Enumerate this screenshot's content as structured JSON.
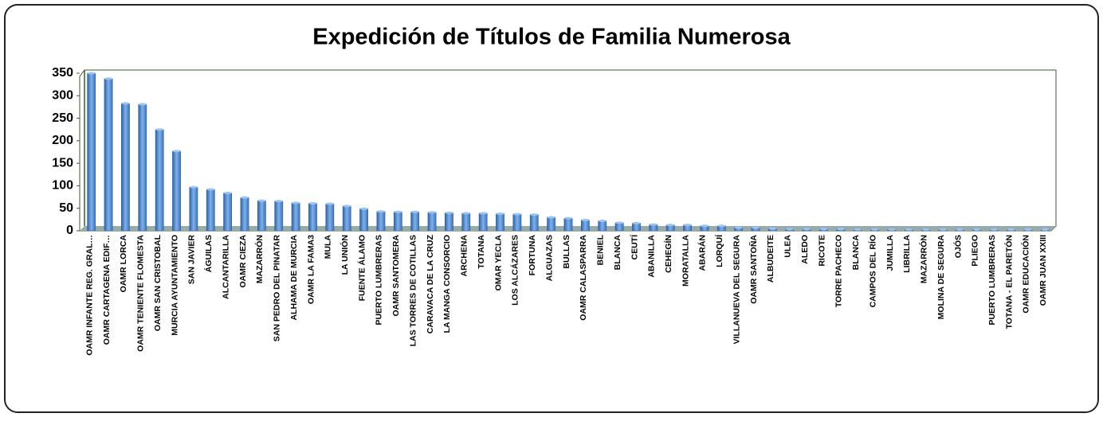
{
  "chart_data": {
    "type": "bar",
    "title": "Expedición de Títulos de Familia Numerosa",
    "categories": [
      "OAMR INFANTE REG. GRAL…",
      "OAMR CARTAGENA EDIF…",
      "OAMR LORCA",
      "OAMR TENIENTE FLOMESTA",
      "OAMR SAN CRISTOBAL",
      "MURCIA AYUNTAMIENTO",
      "SAN JAVIER",
      "ÁGUILAS",
      "ALCANTARILLA",
      "OAMR CIEZA",
      "MAZARRÓN",
      "SAN PEDRO DEL PINATAR",
      "ALHAMA DE MURCIA",
      "OAMR LA FAMA3",
      "MULA",
      "LA UNIÓN",
      "FUENTE ÁLAMO",
      "PUERTO LUMBRERAS",
      "OAMR SANTOMERA",
      "LAS TORRES DE COTILLAS",
      "CARAVACA DE LA CRUZ",
      "LA MANGA CONSORCIO",
      "ARCHENA",
      "TOTANA",
      "OMAR YECLA",
      "LOS ALCÁZARES",
      "FORTUNA",
      "ALGUAZAS",
      "BULLAS",
      "OAMR CALASPARRA",
      "BENIEL",
      "BLANCA",
      "CEUTÍ",
      "ABANILLA",
      "CEHEGÍN",
      "MORATALLA",
      "ABARÁN",
      "LORQUÍ",
      "VILLANUEVA DEL SEGURA",
      "OAMR SANTOÑA",
      "ALBUDEITE",
      "ULEA",
      "ALEDO",
      "RICOTE",
      "TORRE PACHECO",
      "BLANCA",
      "CAMPOS DEL RÍO",
      "JUMILLA",
      "LIBRILLA",
      "MAZARRÓN",
      "MOLINA DE SEGURA",
      "OJÓS",
      "PLIEGO",
      "PUERTO LUMBRERAS",
      "TOTANA - EL PARETÓN",
      "OAMR EDUCACIÓN",
      "OAMR JUAN XXIII"
    ],
    "values": [
      350,
      338,
      283,
      281,
      225,
      177,
      97,
      92,
      84,
      74,
      67,
      66,
      62,
      61,
      60,
      55,
      49,
      43,
      42,
      42,
      41,
      40,
      39,
      39,
      38,
      37,
      36,
      30,
      28,
      24,
      22,
      18,
      17,
      14,
      13,
      13,
      11,
      11,
      7,
      7,
      5,
      4,
      4,
      4,
      4,
      3,
      3,
      3,
      3,
      3,
      3,
      3,
      3,
      3,
      3,
      3,
      3
    ],
    "color": "#4a86cf",
    "ylim": [
      0,
      350
    ],
    "yticks": [
      0,
      50,
      100,
      150,
      200,
      250,
      300,
      350
    ]
  }
}
